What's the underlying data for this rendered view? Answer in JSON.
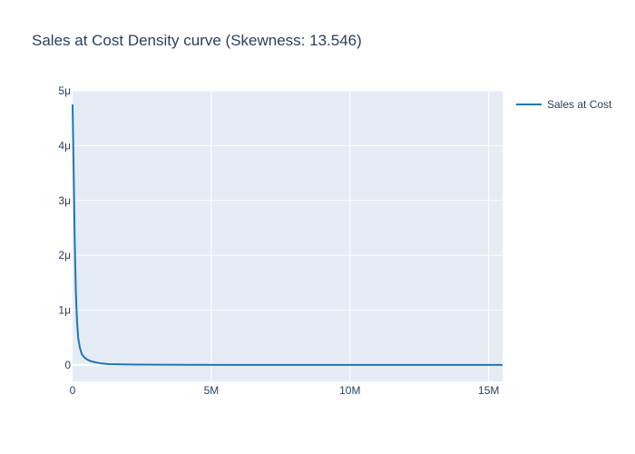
{
  "chart_data": {
    "type": "line",
    "title": "Sales at Cost Density curve (Skewness: 13.546)",
    "xlabel": "",
    "ylabel": "",
    "xlim": [
      0,
      15500000
    ],
    "ylim": [
      -3e-07,
      5e-06
    ],
    "x_ticks": [
      {
        "value": 0,
        "label": "0"
      },
      {
        "value": 5000000,
        "label": "5M"
      },
      {
        "value": 10000000,
        "label": "10M"
      },
      {
        "value": 15000000,
        "label": "15M"
      }
    ],
    "y_ticks": [
      {
        "value": 0,
        "label": "0"
      },
      {
        "value": 1e-06,
        "label": "1μ"
      },
      {
        "value": 2e-06,
        "label": "2μ"
      },
      {
        "value": 3e-06,
        "label": "3μ"
      },
      {
        "value": 4e-06,
        "label": "4μ"
      },
      {
        "value": 5e-06,
        "label": "5μ"
      }
    ],
    "grid": true,
    "legend_position": "top-right",
    "series": [
      {
        "name": "Sales at Cost",
        "color": "#1f77b4",
        "x": [
          0,
          40000,
          80000,
          120000,
          160000,
          200000,
          260000,
          330000,
          420000,
          520000,
          650000,
          800000,
          1000000,
          1300000,
          1700000,
          2200000,
          3000000,
          4000000,
          6000000,
          8000000,
          10000000,
          12000000,
          14000000,
          15500000
        ],
        "y": [
          4.75e-06,
          3.5e-06,
          2.2e-06,
          1.3e-06,
          8e-07,
          5e-07,
          3.2e-07,
          2e-07,
          1.4e-07,
          1e-07,
          7e-08,
          5e-08,
          3e-08,
          1.5e-08,
          1e-08,
          7e-09,
          4e-09,
          2e-09,
          1e-09,
          5e-10,
          3e-10,
          2e-10,
          1e-10,
          1e-10
        ]
      }
    ]
  }
}
